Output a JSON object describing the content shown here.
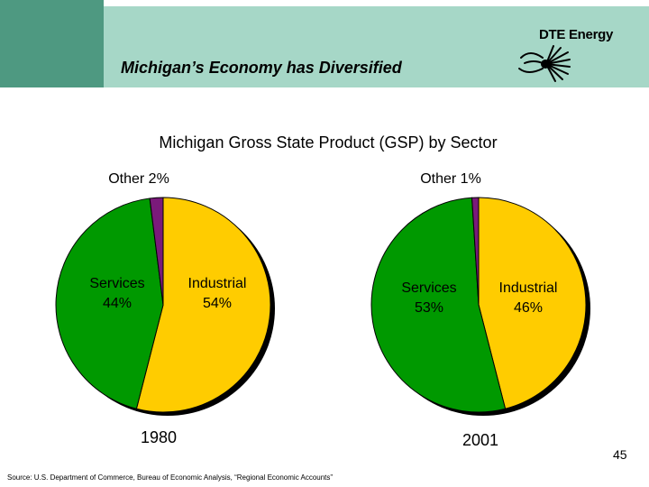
{
  "header": {
    "title": "Michigan’s Economy has Diversified",
    "logo_text": "DTE Energy"
  },
  "chart_data": {
    "type": "pie",
    "title": "Michigan Gross State Product (GSP) by Sector",
    "charts": [
      {
        "year": "1980",
        "slices": [
          {
            "name": "Industrial",
            "value": 54,
            "label": "54%",
            "color": "#ffcc00"
          },
          {
            "name": "Services",
            "value": 44,
            "label": "44%",
            "color": "#009900"
          },
          {
            "name": "Other",
            "value": 2,
            "label": "2%",
            "color": "#7a1a7a"
          }
        ]
      },
      {
        "year": "2001",
        "slices": [
          {
            "name": "Industrial",
            "value": 46,
            "label": "46%",
            "color": "#ffcc00"
          },
          {
            "name": "Services",
            "value": 53,
            "label": "53%",
            "color": "#009900"
          },
          {
            "name": "Other",
            "value": 1,
            "label": "1%",
            "color": "#7a1a7a"
          }
        ]
      }
    ]
  },
  "labels": {
    "p1": {
      "other": "Other 2%",
      "services_name": "Services",
      "services_pct": "44%",
      "industrial_name": "Industrial",
      "industrial_pct": "54%",
      "year": "1980"
    },
    "p2": {
      "other": "Other 1%",
      "services_name": "Services",
      "services_pct": "53%",
      "industrial_name": "Industrial",
      "industrial_pct": "46%",
      "year": "2001"
    }
  },
  "footer": {
    "source": "Source: U.S. Department of Commerce, Bureau of Economic Analysis, “Regional Economic Accounts”",
    "page_number": "45"
  }
}
